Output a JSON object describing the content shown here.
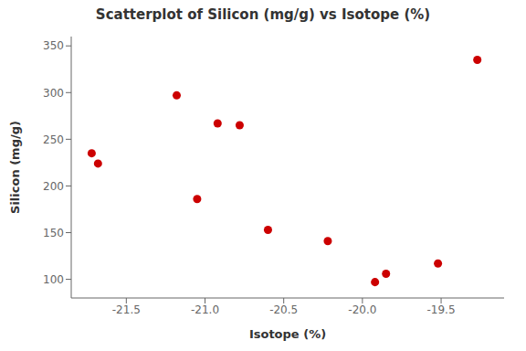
{
  "chart_data": {
    "type": "scatter",
    "title": "Scatterplot of Silicon (mg/g) vs Isotope (%)",
    "xlabel": "Isotope (%)",
    "ylabel": "Silicon (mg/g)",
    "x": [
      -21.72,
      -21.68,
      -21.18,
      -21.05,
      -20.92,
      -20.78,
      -20.6,
      -20.22,
      -19.92,
      -19.85,
      -19.52,
      -19.27
    ],
    "values": [
      235,
      224,
      297,
      186,
      267,
      265,
      153,
      141,
      97,
      106,
      117,
      335
    ],
    "xlim": [
      -21.85,
      -19.1
    ],
    "ylim": [
      80,
      360
    ],
    "xticks": [
      -21.5,
      {
        "value": -21.0,
        "label": "-21.0"
      },
      -20.5,
      {
        "value": -20.0,
        "label": "-20.0"
      },
      -19.5
    ],
    "yticks": [
      100,
      150,
      200,
      250,
      300,
      350
    ],
    "color": "#CC0000",
    "grid": false
  }
}
